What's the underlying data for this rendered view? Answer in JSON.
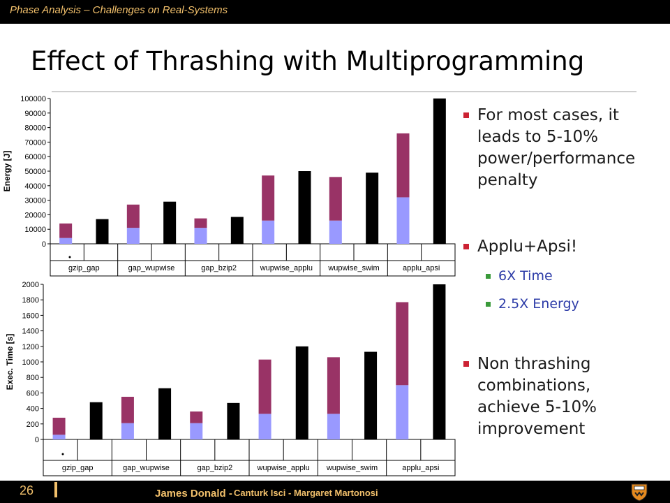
{
  "header": {
    "subtitle": "Phase Analysis – Challenges on Real-Systems"
  },
  "slide": {
    "title": "Effect of Thrashing with Multiprogramming"
  },
  "bullets": [
    {
      "text": [
        "For most cases, it",
        "leads to 5-10%",
        "power/performance",
        "penalty"
      ]
    },
    {
      "text": [
        "Applu+Apsi!"
      ],
      "sub": [
        "6X Time",
        "2.5X Energy"
      ]
    },
    {
      "text": [
        "Non thrashing",
        "combinations,",
        "achieve 5-10%",
        "improvement"
      ]
    }
  ],
  "footer": {
    "page": "26",
    "presenter": "James Donald -",
    "coauthors": "Canturk Isci - Margaret Martonosi"
  },
  "colors": {
    "accent": "#f2c06b",
    "series_light": "#9999ff",
    "series_dark": "#993366",
    "series_black": "#000000"
  },
  "chart_data": [
    {
      "type": "bar",
      "ylabel": "Energy [J]",
      "ylim": [
        0,
        100000
      ],
      "yticks": [
        "0",
        "10000",
        "20000",
        "30000",
        "40000",
        "50000",
        "60000",
        "70000",
        "80000",
        "90000",
        "100000"
      ],
      "categories": [
        "gzip_gap",
        "gap_wupwise",
        "gap_bzip2",
        "wupwise_applu",
        "wupwise_swim",
        "applu_apsi"
      ],
      "stacked": {
        "bottom": [
          4000,
          11000,
          11000,
          16000,
          16000,
          32000
        ],
        "total": [
          14000,
          27000,
          17500,
          47000,
          46000,
          76000
        ]
      },
      "black": [
        17000,
        29000,
        18500,
        50000,
        49000,
        100000
      ]
    },
    {
      "type": "bar",
      "ylabel": "Exec. Time [s]",
      "ylim": [
        0,
        2000
      ],
      "yticks": [
        "0",
        "200",
        "400",
        "600",
        "800",
        "1000",
        "1200",
        "1400",
        "1600",
        "1800",
        "2000"
      ],
      "categories": [
        "gzip_gap",
        "gap_wupwise",
        "gap_bzip2",
        "wupwise_applu",
        "wupwise_swim",
        "applu_apsi"
      ],
      "stacked": {
        "bottom": [
          60,
          210,
          210,
          330,
          330,
          700
        ],
        "total": [
          280,
          550,
          360,
          1030,
          1060,
          1770
        ]
      },
      "black": [
        480,
        660,
        470,
        1200,
        1130,
        2000
      ]
    }
  ]
}
